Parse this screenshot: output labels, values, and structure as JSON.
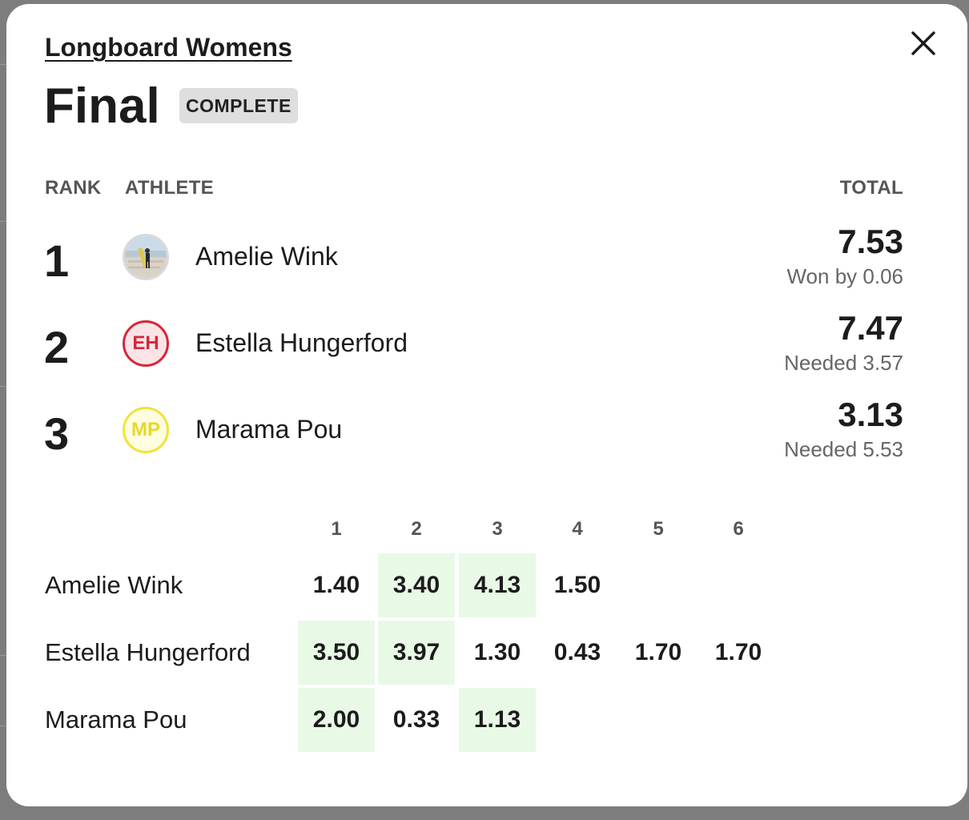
{
  "event": {
    "name": "Longboard Womens"
  },
  "heat": {
    "title": "Final",
    "status": "COMPLETE"
  },
  "columns": {
    "rank": "RANK",
    "athlete": "ATHLETE",
    "total": "TOTAL"
  },
  "athletes": [
    {
      "rank": "1",
      "name": "Amelie Wink",
      "initials": "",
      "avatar": "photo",
      "total": "7.53",
      "note": "Won by 0.06"
    },
    {
      "rank": "2",
      "name": "Estella Hungerford",
      "initials": "EH",
      "avatar": "red",
      "total": "7.47",
      "note": "Needed 3.57"
    },
    {
      "rank": "3",
      "name": "Marama Pou",
      "initials": "MP",
      "avatar": "yellow",
      "total": "3.13",
      "note": "Needed 5.53"
    }
  ],
  "waves": {
    "headers": [
      "1",
      "2",
      "3",
      "4",
      "5",
      "6"
    ],
    "rows": [
      {
        "name": "Amelie Wink",
        "scores": [
          "1.40",
          "3.40",
          "4.13",
          "1.50",
          "",
          ""
        ],
        "counting": [
          false,
          true,
          true,
          false,
          false,
          false
        ]
      },
      {
        "name": "Estella Hungerford",
        "scores": [
          "3.50",
          "3.97",
          "1.30",
          "0.43",
          "1.70",
          "1.70"
        ],
        "counting": [
          true,
          true,
          false,
          false,
          false,
          false
        ]
      },
      {
        "name": "Marama Pou",
        "scores": [
          "2.00",
          "0.33",
          "1.13",
          "",
          "",
          ""
        ],
        "counting": [
          true,
          false,
          true,
          false,
          false,
          false
        ]
      }
    ]
  },
  "colors": {
    "counting_wave_bg": "#e8f9e6",
    "avatar_red": "#d7263d",
    "avatar_yellow": "#f2e23a",
    "badge_bg": "#dedede"
  },
  "icons": {
    "close": "close-icon",
    "photo": "athlete-photo"
  }
}
